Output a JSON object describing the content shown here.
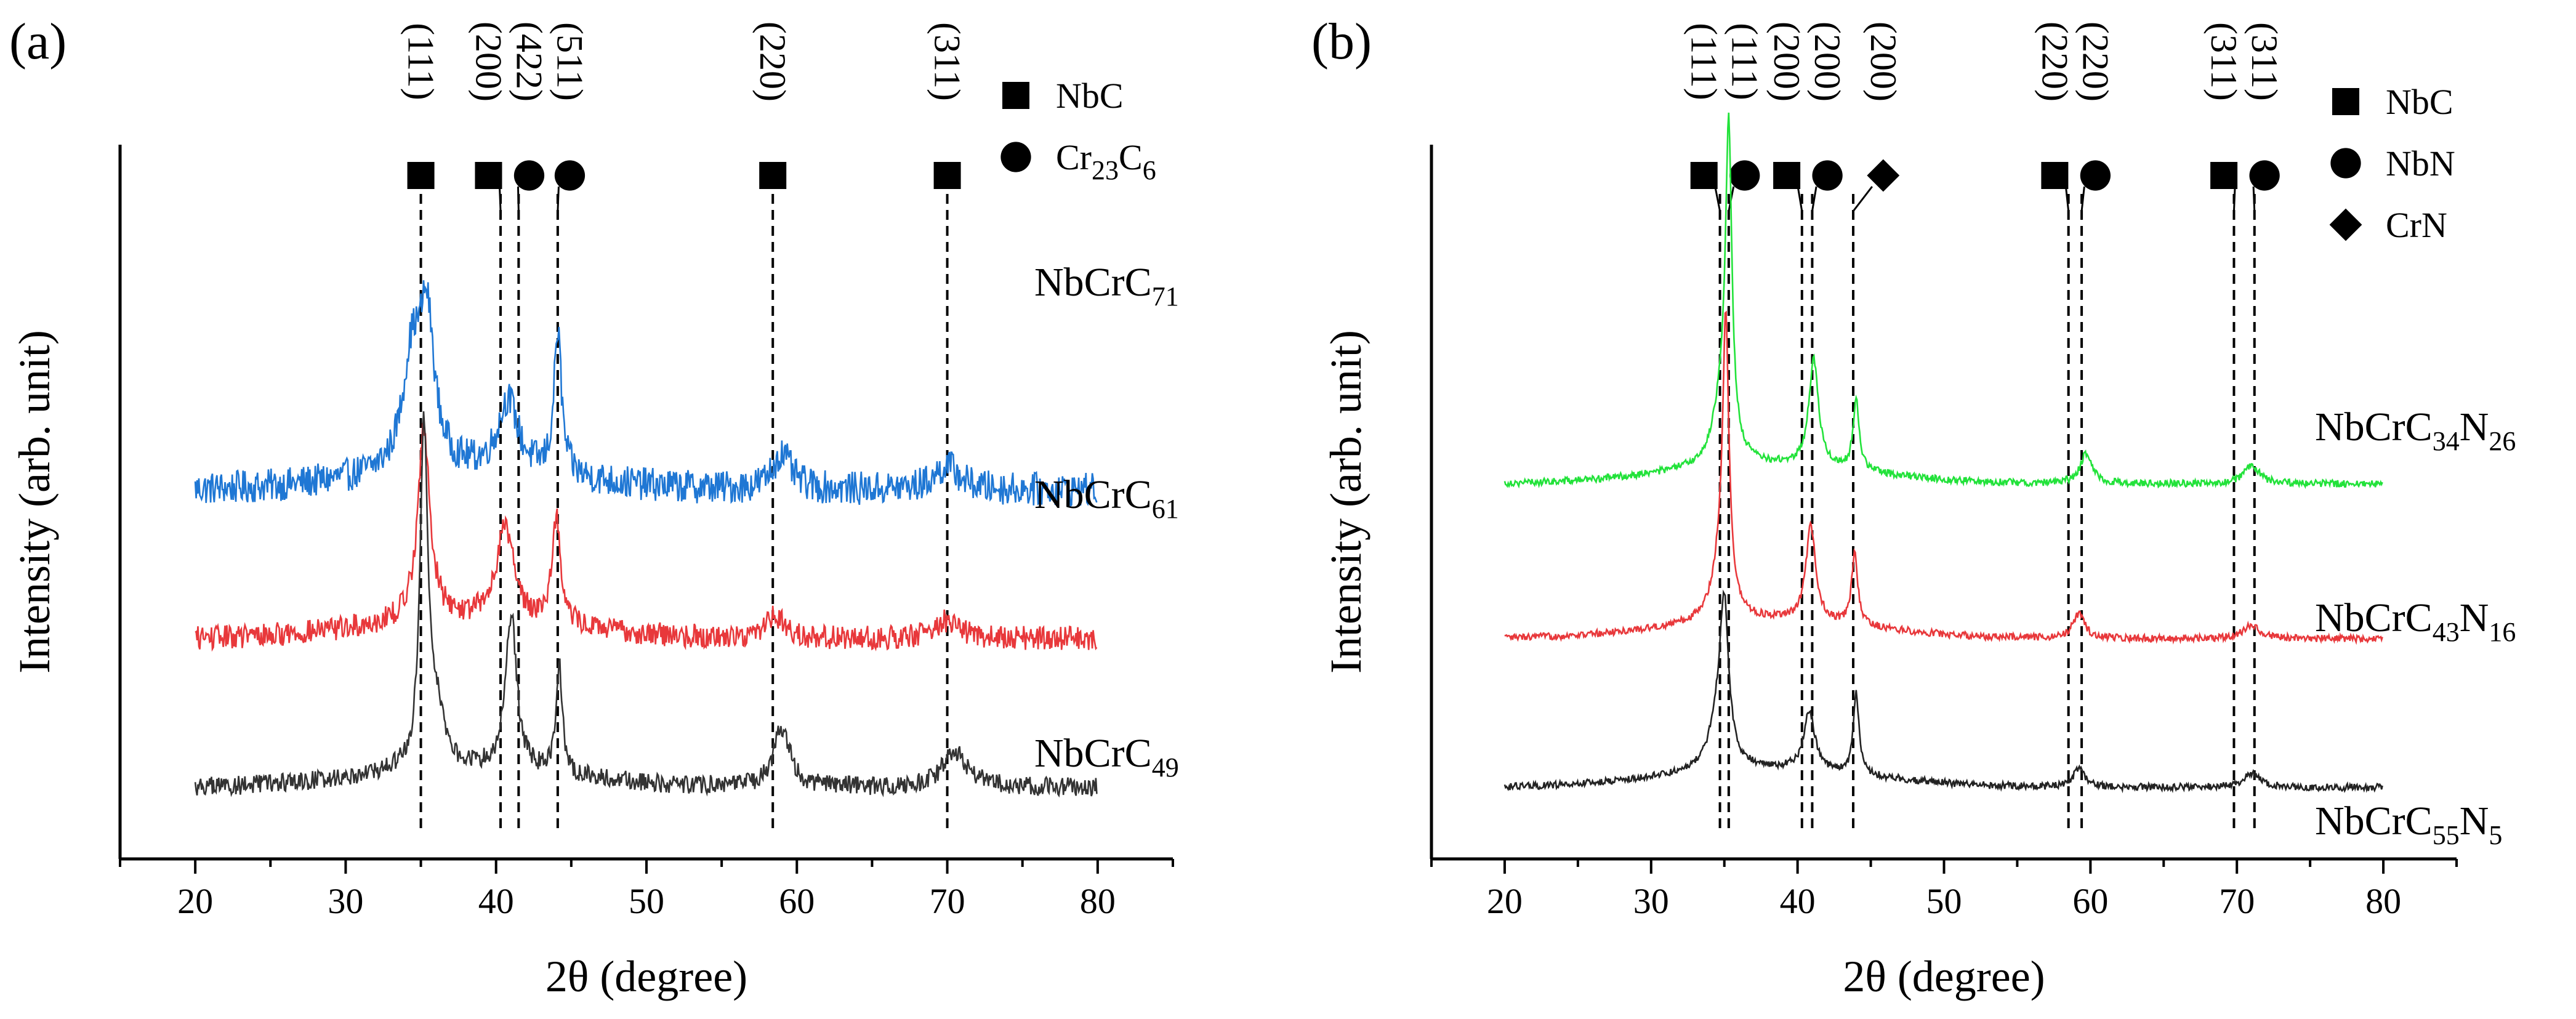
{
  "chart_data": [
    {
      "panel": "(a)",
      "type": "line",
      "xlabel": "2θ (degree)",
      "ylabel": "Intensity (arb. unit)",
      "xlim": [
        15,
        85
      ],
      "xticks": [
        20,
        30,
        40,
        50,
        60,
        70,
        80
      ],
      "grid": false,
      "legend": [
        {
          "marker": "square",
          "base": "NbC",
          "sub": ""
        },
        {
          "marker": "circle",
          "base": "Cr",
          "sub": "23",
          "base2": "C",
          "sub2": "6"
        }
      ],
      "reference_lines": [
        {
          "x": 35.0,
          "marker": "square",
          "plane": "(111)"
        },
        {
          "x": 40.3,
          "marker": "square",
          "plane": "(200)"
        },
        {
          "x": 41.5,
          "marker": "circle",
          "plane": "(422)"
        },
        {
          "x": 44.1,
          "marker": "circle",
          "plane": "(511)"
        },
        {
          "x": 58.4,
          "marker": "square",
          "plane": "(220)"
        },
        {
          "x": 70.0,
          "marker": "square",
          "plane": "(311)"
        }
      ],
      "series": [
        {
          "name": "NbCrC71",
          "label_base": "NbCrC",
          "label_sub": "71",
          "color": "#1f77d4",
          "baseline": 0.26,
          "noise": 0.014,
          "peaks": [
            {
              "x": 34.4,
              "h": 0.09,
              "w": 1.5
            },
            {
              "x": 35.4,
              "h": 0.12,
              "w": 1.2
            },
            {
              "x": 40.8,
              "h": 0.06,
              "w": 1.6
            },
            {
              "x": 44.1,
              "h": 0.12,
              "w": 0.6
            },
            {
              "x": 59.0,
              "h": 0.03,
              "w": 1.5
            },
            {
              "x": 70.0,
              "h": 0.02,
              "w": 2.0
            }
          ]
        },
        {
          "name": "NbCrC61",
          "label_base": "NbCrC",
          "label_sub": "61",
          "color": "#e8383b",
          "baseline": 0.135,
          "noise": 0.01,
          "peaks": [
            {
              "x": 35.2,
              "h": 0.16,
              "w": 1.0
            },
            {
              "x": 40.6,
              "h": 0.08,
              "w": 1.4
            },
            {
              "x": 44.0,
              "h": 0.09,
              "w": 0.7
            },
            {
              "x": 58.5,
              "h": 0.02,
              "w": 1.5
            },
            {
              "x": 70.0,
              "h": 0.015,
              "w": 2.0
            }
          ]
        },
        {
          "name": "NbCrC49",
          "label_base": "NbCrC",
          "label_sub": "49",
          "color": "#333333",
          "baseline": 0.01,
          "noise": 0.008,
          "peaks": [
            {
              "x": 35.2,
              "h": 0.28,
              "w": 0.6
            },
            {
              "x": 36.0,
              "h": 0.05,
              "w": 1.2
            },
            {
              "x": 41.0,
              "h": 0.13,
              "w": 0.9
            },
            {
              "x": 44.2,
              "h": 0.09,
              "w": 0.5
            },
            {
              "x": 59.0,
              "h": 0.05,
              "w": 1.3
            },
            {
              "x": 70.5,
              "h": 0.03,
              "w": 2.0
            }
          ]
        }
      ],
      "ylim": [
        -0.05,
        0.55
      ]
    },
    {
      "panel": "(b)",
      "type": "line",
      "xlabel": "2θ (degree)",
      "ylabel": "Intensity (arb. unit)",
      "xlim": [
        15,
        85
      ],
      "xticks": [
        20,
        30,
        40,
        50,
        60,
        70,
        80
      ],
      "grid": false,
      "legend": [
        {
          "marker": "square",
          "base": "NbC",
          "sub": ""
        },
        {
          "marker": "circle",
          "base": "NbN",
          "sub": ""
        },
        {
          "marker": "diamond",
          "base": "CrN",
          "sub": ""
        }
      ],
      "reference_lines": [
        {
          "x": 34.7,
          "marker": "square",
          "plane": "(111)"
        },
        {
          "x": 35.3,
          "marker": "circle",
          "plane": "(111)"
        },
        {
          "x": 40.3,
          "marker": "square",
          "plane": "(200)"
        },
        {
          "x": 41.0,
          "marker": "circle",
          "plane": "(200)"
        },
        {
          "x": 43.8,
          "marker": "diamond",
          "plane": "(200)"
        },
        {
          "x": 58.5,
          "marker": "square",
          "plane": "(220)"
        },
        {
          "x": 59.4,
          "marker": "circle",
          "plane": "(220)"
        },
        {
          "x": 69.8,
          "marker": "square",
          "plane": "(311)"
        },
        {
          "x": 71.2,
          "marker": "circle",
          "plane": "(311)"
        }
      ],
      "series": [
        {
          "name": "NbCrC34N26",
          "label_base": "NbCrC",
          "label_sub": "34",
          "label_base2": "N",
          "label_sub2": "26",
          "color": "#22e23a",
          "baseline": 0.265,
          "noise": 0.003,
          "peaks": [
            {
              "x": 35.3,
              "h": 0.25,
              "w": 0.5
            },
            {
              "x": 34.9,
              "h": 0.06,
              "w": 1.4
            },
            {
              "x": 41.1,
              "h": 0.09,
              "w": 0.8
            },
            {
              "x": 44.0,
              "h": 0.06,
              "w": 0.5
            },
            {
              "x": 59.7,
              "h": 0.025,
              "w": 1.0
            },
            {
              "x": 71.0,
              "h": 0.015,
              "w": 1.3
            }
          ]
        },
        {
          "name": "NbCrC43N16",
          "label_base": "NbCrC",
          "label_sub": "43",
          "label_base2": "N",
          "label_sub2": "16",
          "color": "#e8383b",
          "baseline": 0.135,
          "noise": 0.003,
          "peaks": [
            {
              "x": 35.1,
              "h": 0.22,
              "w": 0.5
            },
            {
              "x": 34.8,
              "h": 0.05,
              "w": 1.4
            },
            {
              "x": 40.9,
              "h": 0.08,
              "w": 0.8
            },
            {
              "x": 43.9,
              "h": 0.06,
              "w": 0.5
            },
            {
              "x": 59.2,
              "h": 0.02,
              "w": 1.0
            },
            {
              "x": 71.0,
              "h": 0.012,
              "w": 1.3
            }
          ]
        },
        {
          "name": "NbCrC55N5",
          "label_base": "NbCrC",
          "label_sub": "55",
          "label_base2": "N",
          "label_sub2": "5",
          "color": "#222222",
          "baseline": 0.01,
          "noise": 0.003,
          "peaks": [
            {
              "x": 35.0,
              "h": 0.12,
              "w": 0.7
            },
            {
              "x": 34.6,
              "h": 0.04,
              "w": 1.5
            },
            {
              "x": 40.8,
              "h": 0.05,
              "w": 0.9
            },
            {
              "x": 44.0,
              "h": 0.07,
              "w": 0.45
            },
            {
              "x": 59.2,
              "h": 0.015,
              "w": 1.0
            },
            {
              "x": 71.0,
              "h": 0.012,
              "w": 1.4
            }
          ]
        }
      ],
      "ylim": [
        -0.05,
        0.55
      ]
    }
  ]
}
